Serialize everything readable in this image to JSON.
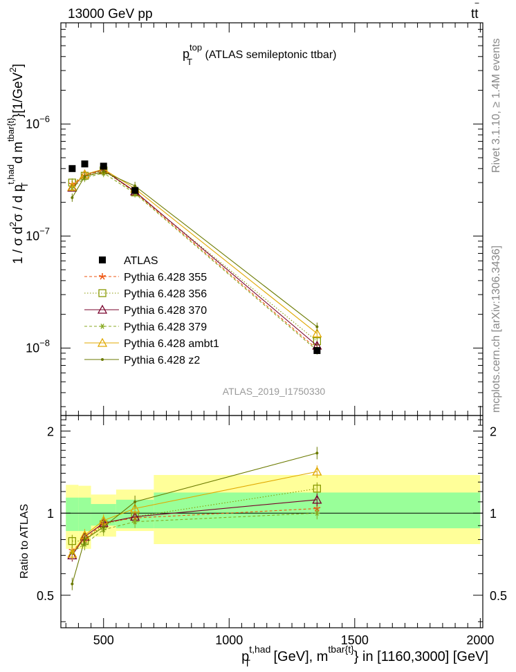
{
  "header": {
    "left": "13000 GeV pp",
    "right_main": "tt",
    "right_bar": "‾"
  },
  "side_labels": {
    "top": "Rivet 3.1.10, ≥ 1.4M events",
    "bottom": "mcplots.cern.ch [arXiv:1306.3436]"
  },
  "chart_data": {
    "type": "line",
    "title": {
      "p": "p",
      "sup": "top",
      "sub": "T",
      "rest": " (ATLAS semileptonic ttbar)"
    },
    "analysis_label": "ATLAS_2019_I1750330",
    "ylabel": {
      "a": "1 / σ d",
      "a_sup": "2",
      "b": "σ / d p",
      "b_sub": "T",
      "b_sup": "t,had",
      "c": " d m",
      "c_sup": "tbar{t}",
      "d": "}[1/GeV",
      "d_sup": "2",
      "e": "]"
    },
    "xlabel": {
      "a": "p",
      "a_sub": "T",
      "a_sup": "t,had",
      "b": " [GeV], m",
      "b_sup": "tbar{t}",
      "c": "} in [1160,3000] [GeV]"
    },
    "ratio_ylabel": "Ratio to ATLAS",
    "xlim": [
      330,
      2010
    ],
    "ylim_main": [
      2.5e-09,
      8e-06
    ],
    "ylim_ratio": [
      0.38,
      2.28
    ],
    "x_ticks": [
      {
        "v": 500,
        "label": "500"
      },
      {
        "v": 1000,
        "label": "1000"
      },
      {
        "v": 1500,
        "label": "1500"
      },
      {
        "v": 2000,
        "label": "2000"
      }
    ],
    "y_ticks_main": [
      {
        "v": 1e-06,
        "base": "10",
        "exp": "−6"
      },
      {
        "v": 1e-07,
        "base": "10",
        "exp": "−7"
      },
      {
        "v": 1e-08,
        "base": "10",
        "exp": "−8"
      }
    ],
    "y_ticks_ratio": [
      {
        "v": 0.5,
        "label": "0.5"
      },
      {
        "v": 1,
        "label": "1"
      },
      {
        "v": 2,
        "label": "2"
      }
    ],
    "bins": [
      {
        "lo": 350,
        "hi": 400
      },
      {
        "lo": 400,
        "hi": 450
      },
      {
        "lo": 450,
        "hi": 550
      },
      {
        "lo": 550,
        "hi": 700
      },
      {
        "lo": 700,
        "hi": 2000
      }
    ],
    "data": {
      "name": "ATLAS",
      "x": [
        375,
        425,
        500,
        625,
        1350
      ],
      "y": [
        4e-07,
        4.4e-07,
        4.2e-07,
        2.55e-07,
        9.5e-09
      ]
    },
    "ratio_bands": {
      "green_lo": [
        0.86,
        0.86,
        0.9,
        0.88,
        0.88
      ],
      "green_hi": [
        1.14,
        1.14,
        1.08,
        1.12,
        1.19
      ],
      "yellow_lo": [
        0.74,
        0.74,
        0.82,
        0.86,
        0.77
      ],
      "yellow_hi": [
        1.27,
        1.26,
        1.17,
        1.22,
        1.38
      ]
    },
    "series": [
      {
        "name": "Pythia 6.428 355",
        "color": "#ee5511",
        "dash": "4,3",
        "marker": "star",
        "y": [
          2.9e-07,
          3.45e-07,
          3.9e-07,
          2.45e-07,
          9.8e-09
        ],
        "ratio": [
          0.73,
          0.8,
          0.92,
          0.96,
          1.04
        ]
      },
      {
        "name": "Pythia 6.428 356",
        "color": "#889900",
        "dash": "1.5,2.5",
        "marker": "square",
        "y": [
          3e-07,
          3.45e-07,
          3.85e-07,
          2.45e-07,
          1.15e-08
        ],
        "ratio": [
          0.79,
          0.79,
          0.91,
          0.97,
          1.23
        ]
      },
      {
        "name": "Pythia 6.428 370",
        "color": "#77002a",
        "dash": "",
        "marker": "triangle",
        "y": [
          2.7e-07,
          3.55e-07,
          3.9e-07,
          2.5e-07,
          1.05e-08
        ],
        "ratio": [
          0.7,
          0.82,
          0.92,
          0.97,
          1.12
        ]
      },
      {
        "name": "Pythia 6.428 379",
        "color": "#88aa22",
        "dash": "4,3",
        "marker": "asterisk",
        "y": [
          2.7e-07,
          3.3e-07,
          3.65e-07,
          2.4e-07,
          9.5e-09
        ],
        "ratio": [
          0.72,
          0.77,
          0.87,
          0.93,
          1.0
        ]
      },
      {
        "name": "Pythia 6.428 ambt1",
        "color": "#e0a800",
        "dash": "",
        "marker": "triangle",
        "y": [
          2.75e-07,
          3.55e-07,
          3.95e-07,
          2.65e-07,
          1.35e-08
        ],
        "ratio": [
          0.71,
          0.83,
          0.94,
          1.04,
          1.42
        ]
      },
      {
        "name": "Pythia 6.428 z2",
        "color": "#6b7a00",
        "dash": "",
        "marker": "dot",
        "y": [
          2.2e-07,
          3.4e-07,
          3.75e-07,
          2.8e-07,
          1.55e-08
        ],
        "ratio": [
          0.55,
          0.8,
          0.89,
          1.1,
          1.66
        ]
      }
    ]
  }
}
